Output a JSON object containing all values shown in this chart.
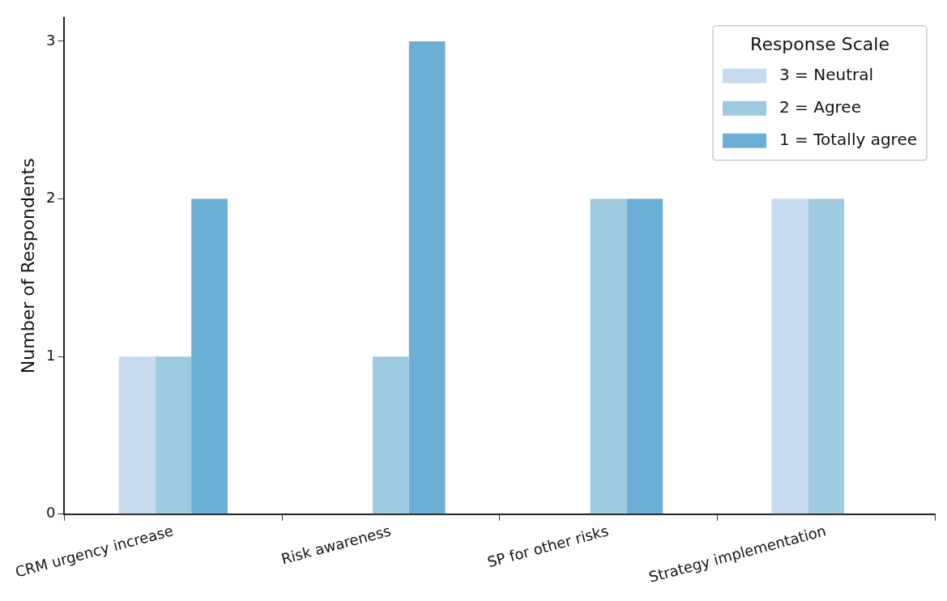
{
  "chart_data": {
    "type": "bar",
    "ylabel": "Number of Respondents",
    "legend_title": "Response Scale",
    "legend": "top right",
    "grid": false,
    "categories": [
      "CRM urgency increase",
      "Risk awareness",
      "SP for other risks",
      "Strategy implementation"
    ],
    "series": [
      {
        "name": "3 = Neutral",
        "color": "#c6dbef",
        "values": [
          1,
          0,
          0,
          2
        ]
      },
      {
        "name": "2 = Agree",
        "color": "#9ecae1",
        "values": [
          1,
          1,
          2,
          2
        ]
      },
      {
        "name": "1 = Totally agree",
        "color": "#6baed6",
        "values": [
          2,
          3,
          2,
          0
        ]
      }
    ],
    "ylim": [
      0,
      3.15
    ],
    "yticks": [
      0,
      1,
      2,
      3
    ]
  }
}
